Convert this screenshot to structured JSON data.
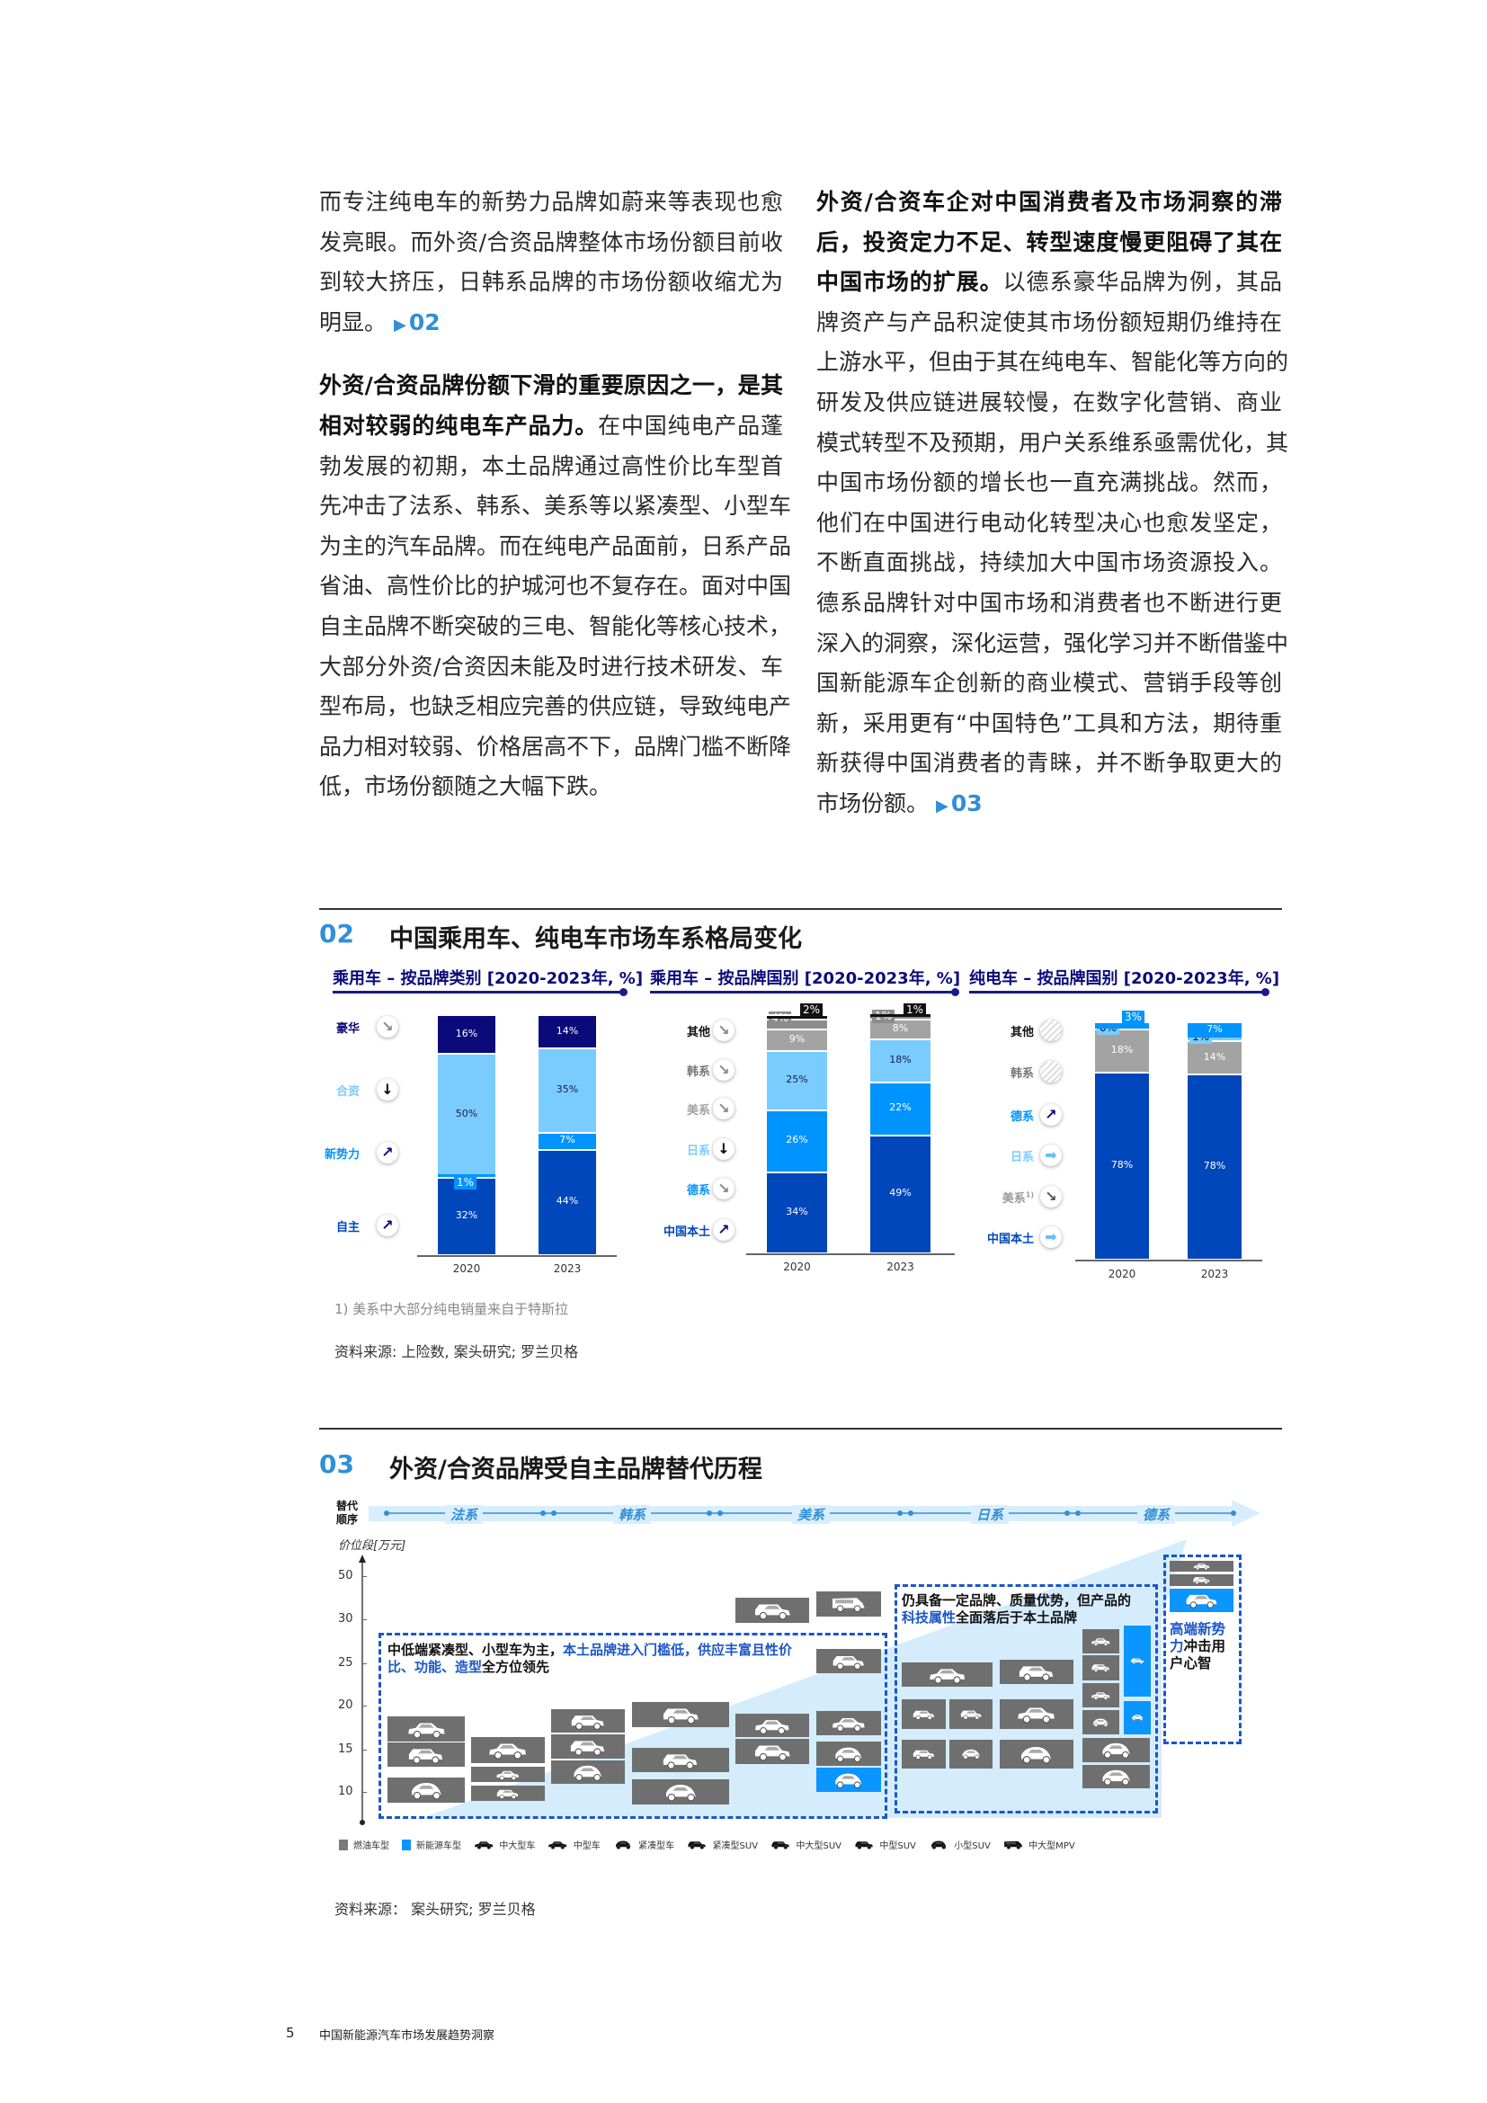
{
  "text": {
    "left": [
      {
        "text": "而专注纯电车的新势力品牌如蔚来等表现也愈"
      },
      {
        "text": "发亮眼。而外资/合资品牌整体市场份额目前收"
      },
      {
        "text": "到较大挤压，日韩系品牌的市场份额收缩尤为"
      },
      {
        "text": "明显。",
        "ref": "02",
        "last": true,
        "gap": true
      },
      {
        "bold": "外资/合资品牌份额下滑的重要原因之一，是其"
      },
      {
        "bold": "相对较弱的纯电车产品力。",
        "text": "在中国纯电产品蓬"
      },
      {
        "text": "勃发展的初期，本土品牌通过高性价比车型首"
      },
      {
        "text": "先冲击了法系、韩系、美系等以紧凑型、小型车"
      },
      {
        "text": "为主的汽车品牌。而在纯电产品面前，日系产品"
      },
      {
        "text": "省油、高性价比的护城河也不复存在。面对中国"
      },
      {
        "text": "自主品牌不断突破的三电、智能化等核心技术，"
      },
      {
        "text": "大部分外资/合资因未能及时进行技术研发、车"
      },
      {
        "text": "型布局，也缺乏相应完善的供应链，导致纯电产"
      },
      {
        "text": "品力相对较弱、价格居高不下，品牌门槛不断降"
      },
      {
        "text": "低，市场份额随之大幅下跌。",
        "last": true
      }
    ],
    "right": [
      {
        "bold": "外资/合资车企对中国消费者及市场洞察的滞"
      },
      {
        "bold": "后，投资定力不足、转型速度慢更阻碍了其在"
      },
      {
        "bold": "中国市场的扩展。",
        "text": "以德系豪华品牌为例，其品"
      },
      {
        "text": "牌资产与产品积淀使其市场份额短期仍维持在"
      },
      {
        "text": "上游水平，但由于其在纯电车、智能化等方向的"
      },
      {
        "text": "研发及供应链进展较慢，在数字化营销、商业"
      },
      {
        "text": "模式转型不及预期，用户关系维系亟需优化，其"
      },
      {
        "text": "中国市场份额的增长也一直充满挑战。然而，"
      },
      {
        "text": "他们在中国进行电动化转型决心也愈发坚定，"
      },
      {
        "text": "不断直面挑战，持续加大中国市场资源投入。"
      },
      {
        "text": "德系品牌针对中国市场和消费者也不断进行更"
      },
      {
        "text": "深入的洞察，深化运营，强化学习并不断借鉴中"
      },
      {
        "text": "国新能源车企创新的商业模式、营销手段等创"
      },
      {
        "text": "新，采用更有“中国特色”工具和方法，期待重"
      },
      {
        "text": "新获得中国消费者的青睐，并不断争取更大的"
      },
      {
        "text": "市场份额。",
        "ref": "03",
        "last": true
      }
    ],
    "ref_arrow": "▶"
  },
  "section02": {
    "number": "02",
    "title": "中国乘用车、纯电车市场车系格局变化",
    "footnote": "1) 美系中大部分纯电销量来自于特斯拉",
    "source": "资料来源: 上险数, 案头研究; 罗兰贝格"
  },
  "chart_data": [
    {
      "type": "bar",
      "stacked": true,
      "title": "乘用车 – 按品牌类别 [2020-2023年, %]",
      "categories": [
        "2020",
        "2023"
      ],
      "unit": "%",
      "series": [
        {
          "name": "自主",
          "values": [
            32,
            44
          ],
          "color": "#0047bb",
          "label_color": "#0047bb",
          "trend": "up-right",
          "trend_color": "#0a0a7a"
        },
        {
          "name": "新势力",
          "values": [
            1,
            7
          ],
          "color": "#0094ff",
          "label_color": "#0094ff",
          "trend": "up-right",
          "trend_color": "#0a0a7a"
        },
        {
          "name": "合资",
          "values": [
            50,
            35
          ],
          "color": "#7accff",
          "label_color": "#7accff",
          "trend": "down",
          "trend_color": "#000000"
        },
        {
          "name": "豪华",
          "values": [
            16,
            14
          ],
          "color": "#0a0a7a",
          "label_color": "#0a0a7a",
          "trend": "down-right",
          "trend_color": "#8a8a8a"
        }
      ]
    },
    {
      "type": "bar",
      "stacked": true,
      "title": "乘用车 – 按品牌国别 [2020-2023年, %]",
      "categories": [
        "2020",
        "2023"
      ],
      "unit": "%",
      "series": [
        {
          "name": "中国本土",
          "values": [
            34,
            49
          ],
          "color": "#0047bb",
          "label_color": "#0047bb",
          "trend": "up-right",
          "trend_color": "#0a0a7a"
        },
        {
          "name": "德系",
          "values": [
            26,
            22
          ],
          "color": "#0094ff",
          "label_color": "#0094ff",
          "trend": "down-right",
          "trend_color": "#8a8a8a"
        },
        {
          "name": "日系",
          "values": [
            25,
            18
          ],
          "color": "#7accff",
          "label_color": "#7accff",
          "trend": "down",
          "trend_color": "#000000"
        },
        {
          "name": "美系",
          "values": [
            9,
            8
          ],
          "color": "#a3a3a3",
          "label_color": "#a3a3a3",
          "trend": "down-right",
          "trend_color": "#8a8a8a"
        },
        {
          "name": "韩系",
          "values": [
            4,
            1
          ],
          "color": "#8c8c8c",
          "label_color": "#777777",
          "trend": "down-right",
          "trend_color": "#8a8a8a"
        },
        {
          "name": "其他",
          "values": [
            2,
            1
          ],
          "color": "#111111",
          "label_color": "#111111",
          "trend": "down-right",
          "trend_color": "#8a8a8a"
        }
      ]
    },
    {
      "type": "bar",
      "stacked": true,
      "title": "纯电车 – 按品牌国别 [2020-2023年, %]",
      "categories": [
        "2020",
        "2023"
      ],
      "unit": "%",
      "series": [
        {
          "name": "中国本土",
          "values": [
            78,
            78
          ],
          "color": "#0047bb",
          "label_color": "#0047bb",
          "trend": "right",
          "trend_color": "#66bfff"
        },
        {
          "name": "美系",
          "name_sup": "1)",
          "values": [
            18,
            14
          ],
          "color": "#a3a3a3",
          "label_color": "#999999",
          "trend": "down-right",
          "trend_color": "#555555"
        },
        {
          "name": "日系",
          "values": [
            0,
            1
          ],
          "color": "#7accff",
          "label_color": "#7accff",
          "trend": "right",
          "trend_color": "#66bfff"
        },
        {
          "name": "德系",
          "values": [
            3,
            7
          ],
          "color": "#0094ff",
          "label_color": "#0094ff",
          "trend": "up-right",
          "trend_color": "#0a0a7a"
        },
        {
          "name": "韩系",
          "values": [
            0,
            0
          ],
          "color": "#8c8c8c",
          "label_color": "#777777",
          "trend": "none"
        },
        {
          "name": "其他",
          "values": [
            0,
            0
          ],
          "color": "#111111",
          "label_color": "#111111",
          "trend": "none"
        }
      ]
    }
  ],
  "section03": {
    "number": "03",
    "title": "外资/合资品牌受自主品牌替代历程",
    "order_label": "替代顺序",
    "axis_label": "价位段[万元]",
    "y_ticks": [
      "50",
      "30",
      "25",
      "20",
      "15",
      "10"
    ],
    "sequence": [
      "法系",
      "韩系",
      "美系",
      "日系",
      "德系"
    ],
    "box1": [
      {
        "t": "中低端紧凑型、小型车为主，",
        "hl": false
      },
      {
        "t": "本土品牌进入门槛低，供应丰富且性价比、功能、造型",
        "hl": true
      },
      {
        "t": "全方位领先",
        "hl": false
      }
    ],
    "box2": [
      {
        "t": "仍具备一定品牌、质量优势，但产品的",
        "hl": false
      },
      {
        "t": "科技属性",
        "hl": true
      },
      {
        "t": "全面落后于本土品牌",
        "hl": false
      }
    ],
    "box3": [
      {
        "t": "高端新势力",
        "hl": true
      },
      {
        "t": "冲击用户心智",
        "hl": false
      }
    ],
    "colors": {
      "ice": "#6f6f6f",
      "nev": "#0a95ff",
      "highlight": "#1b56c8"
    },
    "legend": [
      {
        "label": "燃油车型",
        "icon": "gray-swatch"
      },
      {
        "label": "新能源车型",
        "icon": "blue-swatch"
      },
      {
        "label": "中大型车",
        "icon": "large-sedan-icon"
      },
      {
        "label": "中型车",
        "icon": "mid-sedan-icon"
      },
      {
        "label": "紧凑型车",
        "icon": "compact-car-icon"
      },
      {
        "label": "紧凑型SUV",
        "icon": "compact-suv-icon"
      },
      {
        "label": "中大型SUV",
        "icon": "large-suv-icon"
      },
      {
        "label": "中型SUV",
        "icon": "mid-suv-icon"
      },
      {
        "label": "小型SUV",
        "icon": "small-suv-icon"
      },
      {
        "label": "中大型MPV",
        "icon": "mpv-icon"
      }
    ],
    "source": "资料来源：  案头研究; 罗兰贝格"
  },
  "footer": {
    "page_number": "5",
    "title": "中国新能源汽车市场发展趋势洞察"
  }
}
